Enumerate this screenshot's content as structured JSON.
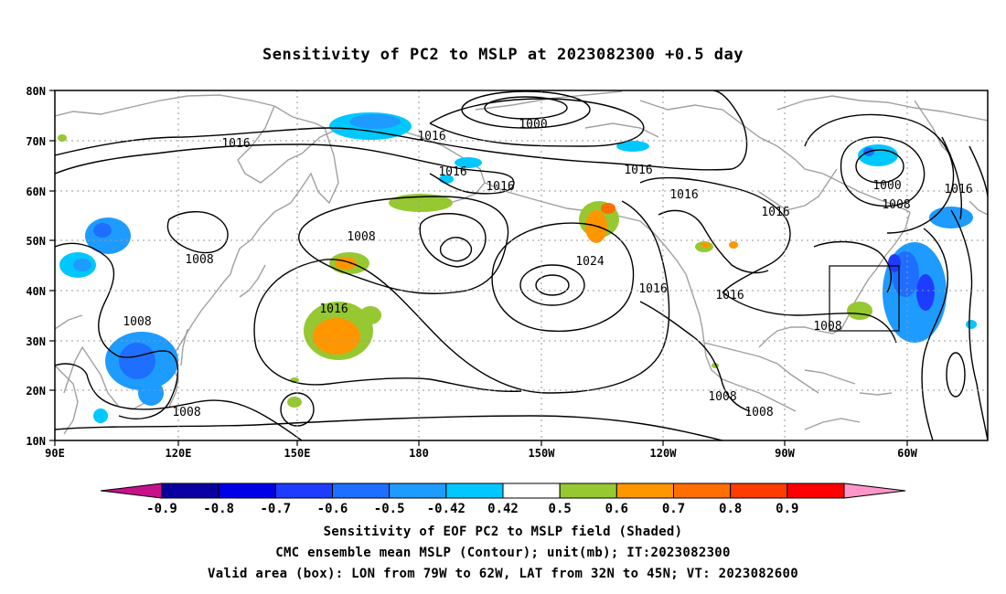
{
  "title": "Sensitivity of PC2 to MSLP at 2023082300 +0.5 day",
  "lat_labels": [
    "80N",
    "70N",
    "60N",
    "50N",
    "40N",
    "30N",
    "20N",
    "10N"
  ],
  "lon_labels": [
    "90E",
    "120E",
    "150E",
    "180",
    "150W",
    "120W",
    "90W",
    "60W"
  ],
  "contour_labels": [
    "1000",
    "1016",
    "1016",
    "1016",
    "1016",
    "1016",
    "1016",
    "1016",
    "1016",
    "1016",
    "1016",
    "1016",
    "1000",
    "1008",
    "1008",
    "1008",
    "1008",
    "1008",
    "1008",
    "1024",
    "1008",
    "1008"
  ],
  "colorbar": {
    "labels": [
      "-0.9",
      "-0.8",
      "-0.7",
      "-0.6",
      "-0.5",
      "-0.42",
      "0.42",
      "0.5",
      "0.6",
      "0.7",
      "0.8",
      "0.9"
    ],
    "colors": [
      "#c8108c",
      "#0a00a0",
      "#0000e6",
      "#1e3cff",
      "#1e6eff",
      "#1e9bff",
      "#00c8ff",
      "#ffffff",
      "#96c832",
      "#ff9600",
      "#ff6e00",
      "#ff3c00",
      "#ff0000",
      "#ff96c8"
    ]
  },
  "captions": [
    "Sensitivity of EOF PC2 to MSLP field (Shaded)",
    "CMC ensemble mean MSLP (Contour); unit(mb); IT:2023082300",
    "Valid area (box): LON from 79W to 62W, LAT from 32N to 45N; VT: 2023082600"
  ]
}
